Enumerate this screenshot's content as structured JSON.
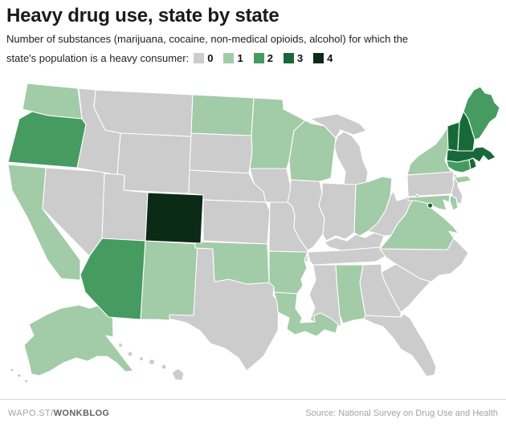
{
  "header": {
    "title": "Heavy drug use, state by state",
    "subtitle_line1": "Number of substances (marijuana, cocaine, non-medical opioids, alcohol) for which the",
    "subtitle_line2": "state's population is a heavy consumer:"
  },
  "legend": {
    "items": [
      {
        "label": "0",
        "color": "#cccccc"
      },
      {
        "label": "1",
        "color": "#a2cba7"
      },
      {
        "label": "2",
        "color": "#459b60"
      },
      {
        "label": "3",
        "color": "#17693a"
      },
      {
        "label": "4",
        "color": "#0b2b17"
      }
    ]
  },
  "chart_data": {
    "type": "choropleth",
    "title": "Heavy drug use, state by state",
    "measure": "Number of substances for which the state's population is a heavy consumer",
    "substances": [
      "marijuana",
      "cocaine",
      "non-medical opioids",
      "alcohol"
    ],
    "value_range": [
      0,
      4
    ],
    "states": {
      "WA": 1,
      "OR": 2,
      "CA": 1,
      "NV": 0,
      "ID": 0,
      "MT": 0,
      "WY": 0,
      "UT": 0,
      "CO": 4,
      "AZ": 2,
      "NM": 1,
      "ND": 1,
      "SD": 0,
      "NE": 0,
      "KS": 0,
      "OK": 1,
      "TX": 0,
      "MN": 1,
      "IA": 0,
      "MO": 0,
      "AR": 1,
      "LA": 1,
      "WI": 1,
      "IL": 0,
      "MI": 0,
      "IN": 0,
      "OH": 1,
      "KY": 0,
      "TN": 0,
      "MS": 0,
      "AL": 1,
      "GA": 0,
      "FL": 0,
      "SC": 0,
      "NC": 0,
      "VA": 1,
      "WV": 0,
      "MD": 1,
      "DE": 1,
      "DC": 3,
      "PA": 0,
      "NJ": 0,
      "NY": 1,
      "CT": 2,
      "RI": 3,
      "MA": 3,
      "VT": 3,
      "NH": 3,
      "ME": 2,
      "AK": 1,
      "HI": 0
    }
  },
  "footer": {
    "brand_prefix": "WAPO.ST/",
    "brand_bold": "WONKBLOG",
    "source": "Source: National Survey on Drug Use and Health"
  }
}
